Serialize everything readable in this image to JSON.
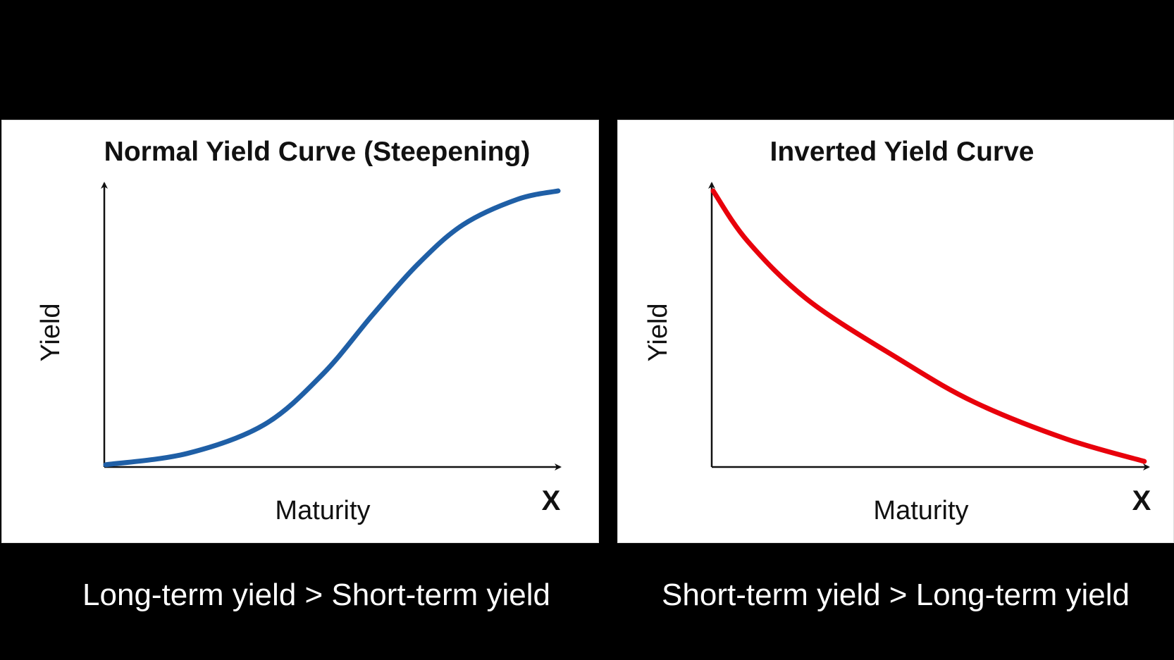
{
  "chart_data": [
    {
      "type": "line",
      "title": "Normal Yield Curve (Steepening)",
      "xlabel": "Maturity",
      "ylabel": "Yield",
      "x_axis_end_mark": "X",
      "xlim": [
        0,
        1
      ],
      "ylim": [
        0,
        1
      ],
      "grid": false,
      "color": "#1f5fa6",
      "series": [
        {
          "x": [
            0,
            0.18,
            0.35,
            0.48,
            0.59,
            0.69,
            0.79,
            0.91,
            1.0
          ],
          "y": [
            0.008,
            0.048,
            0.15,
            0.33,
            0.54,
            0.72,
            0.86,
            0.95,
            0.98
          ]
        }
      ],
      "caption": "Long-term yield > Short-term yield"
    },
    {
      "type": "line",
      "title": "Inverted Yield Curve",
      "xlabel": "Maturity",
      "ylabel": "Yield",
      "x_axis_end_mark": "X",
      "xlim": [
        0,
        1
      ],
      "ylim": [
        0,
        1
      ],
      "grid": false,
      "color": "#e8000b",
      "series": [
        {
          "x": [
            0,
            0.08,
            0.22,
            0.43,
            0.6,
            0.81,
            0.99
          ],
          "y": [
            0.98,
            0.8,
            0.59,
            0.38,
            0.23,
            0.1,
            0.02
          ]
        }
      ],
      "caption": "Short-term yield > Long-term yield"
    }
  ]
}
